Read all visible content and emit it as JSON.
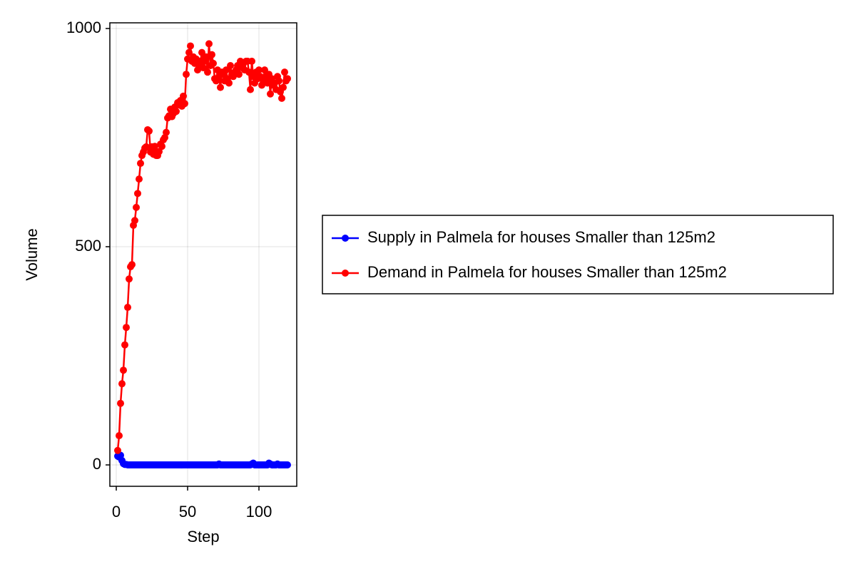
{
  "chart_data": {
    "type": "line",
    "xlabel": "Step",
    "ylabel": "Volume",
    "x": [
      1,
      2,
      3,
      4,
      5,
      6,
      7,
      8,
      9,
      10,
      11,
      12,
      13,
      14,
      15,
      16,
      17,
      18,
      19,
      20,
      21,
      22,
      23,
      24,
      25,
      26,
      27,
      28,
      29,
      30,
      31,
      32,
      33,
      34,
      35,
      36,
      37,
      38,
      39,
      40,
      41,
      42,
      43,
      44,
      45,
      46,
      47,
      48,
      49,
      50,
      51,
      52,
      53,
      54,
      55,
      56,
      57,
      58,
      59,
      60,
      61,
      62,
      63,
      64,
      65,
      66,
      67,
      68,
      69,
      70,
      71,
      72,
      73,
      74,
      75,
      76,
      77,
      78,
      79,
      80,
      81,
      82,
      83,
      84,
      85,
      86,
      87,
      88,
      89,
      90,
      91,
      92,
      93,
      94,
      95,
      96,
      97,
      98,
      99,
      100,
      101,
      102,
      103,
      104,
      105,
      106,
      107,
      108,
      109,
      110,
      111,
      112,
      113,
      114,
      115,
      116,
      117,
      118,
      119,
      120
    ],
    "series": [
      {
        "name": "Supply in Palmela for houses Smaller than 125m2",
        "color": "#0000ff",
        "values": [
          20,
          18,
          22,
          10,
          3,
          1,
          1,
          0,
          0,
          0,
          0,
          0,
          0,
          0,
          0,
          0,
          0,
          0,
          0,
          0,
          0,
          0,
          0,
          0,
          0,
          0,
          0,
          0,
          0,
          0,
          0,
          0,
          0,
          0,
          0,
          0,
          0,
          0,
          0,
          0,
          0,
          0,
          0,
          0,
          0,
          0,
          0,
          0,
          0,
          0,
          0,
          0,
          0,
          0,
          0,
          0,
          0,
          0,
          0,
          0,
          0,
          0,
          0,
          0,
          0,
          0,
          0,
          0,
          0,
          0,
          0,
          2,
          0,
          0,
          0,
          0,
          0,
          0,
          0,
          0,
          0,
          0,
          0,
          0,
          0,
          0,
          0,
          0,
          0,
          0,
          0,
          0,
          0,
          0,
          2,
          4,
          0,
          0,
          0,
          0,
          0,
          0,
          0,
          0,
          0,
          0,
          4,
          2,
          0,
          0,
          0,
          0,
          2,
          0,
          0,
          0,
          0,
          0,
          0,
          0
        ]
      },
      {
        "name": "Demand in Palmela for houses Smaller than 125m2",
        "color": "#ff0000",
        "values": [
          33,
          67,
          141,
          186,
          217,
          275,
          315,
          361,
          426,
          454,
          459,
          549,
          560,
          590,
          622,
          655,
          691,
          709,
          717,
          726,
          729,
          768,
          765,
          717,
          729,
          712,
          730,
          709,
          709,
          718,
          735,
          730,
          745,
          750,
          762,
          795,
          800,
          815,
          798,
          805,
          820,
          810,
          830,
          825,
          835,
          822,
          845,
          828,
          895,
          930,
          945,
          960,
          925,
          935,
          920,
          930,
          905,
          915,
          925,
          945,
          910,
          925,
          935,
          900,
          965,
          915,
          940,
          920,
          885,
          880,
          905,
          890,
          865,
          900,
          895,
          880,
          905,
          885,
          875,
          915,
          895,
          890,
          900,
          905,
          915,
          895,
          925,
          910,
          920,
          905,
          925,
          925,
          900,
          860,
          925,
          890,
          875,
          900,
          885,
          905,
          890,
          870,
          880,
          905,
          885,
          875,
          895,
          850,
          885,
          870,
          875,
          860,
          890,
          880,
          855,
          840,
          865,
          900,
          880,
          885
        ]
      }
    ],
    "xlim": [
      -4.5,
      126.5
    ],
    "ylim": [
      -49,
      1013
    ],
    "xticks": [
      0,
      50,
      100
    ],
    "yticks": [
      0,
      500,
      1000
    ],
    "grid": true,
    "legend": "right"
  }
}
